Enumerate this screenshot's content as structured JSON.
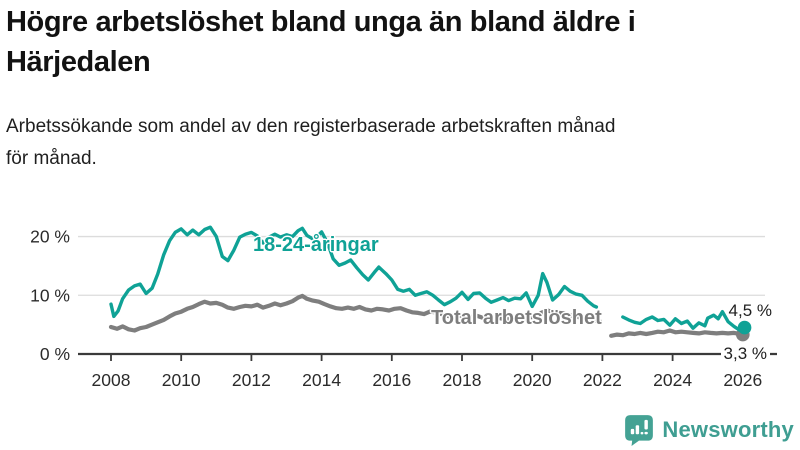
{
  "header": {
    "title_line1": "Högre arbetslöshet bland unga än bland äldre i",
    "title_line2": "Härjedalen",
    "subtitle_line1": "Arbetssökande som andel av den registerbaserade arbetskraften månad",
    "subtitle_line2": "för månad."
  },
  "branding": {
    "logo_text": "Newsworthy",
    "logo_color": "#3f9e92",
    "logo_icon": "bar-chart-speech-bubble-icon"
  },
  "chart_data": {
    "type": "line",
    "title": "Högre arbetslöshet bland unga än bland äldre i Härjedalen",
    "subtitle": "Arbetssökande som andel av den registerbaserade arbetskraften månad för månad.",
    "unit": "%",
    "grid": "horizontal",
    "legend_position": "inline-labels",
    "x_axis": {
      "ticks": [
        2008,
        2010,
        2012,
        2014,
        2016,
        2018,
        2020,
        2022,
        2024,
        2026
      ],
      "range": [
        2007,
        2027
      ]
    },
    "y_axis": {
      "ticks": [
        {
          "value": 0,
          "label": "0 %"
        },
        {
          "value": 10,
          "label": "10 %"
        },
        {
          "value": 20,
          "label": "20 %"
        }
      ],
      "range": [
        0,
        24
      ]
    },
    "series": [
      {
        "name": "18-24-åringar",
        "color": "#0fa296",
        "end_label": "4,5 %",
        "end_value": 4.5,
        "segments": [
          [
            [
              2008.0,
              8.5
            ],
            [
              2008.08,
              6.4
            ],
            [
              2008.2,
              7.3
            ],
            [
              2008.33,
              9.4
            ],
            [
              2008.5,
              10.9
            ],
            [
              2008.67,
              11.6
            ],
            [
              2008.83,
              11.9
            ],
            [
              2009.0,
              10.3
            ],
            [
              2009.17,
              11.2
            ],
            [
              2009.33,
              13.6
            ],
            [
              2009.5,
              16.9
            ],
            [
              2009.67,
              19.3
            ],
            [
              2009.83,
              20.7
            ],
            [
              2010.0,
              21.3
            ],
            [
              2010.17,
              20.3
            ],
            [
              2010.33,
              21.1
            ],
            [
              2010.5,
              20.3
            ],
            [
              2010.67,
              21.2
            ],
            [
              2010.83,
              21.6
            ],
            [
              2011.0,
              20.0
            ],
            [
              2011.17,
              16.6
            ],
            [
              2011.33,
              15.9
            ],
            [
              2011.5,
              17.7
            ],
            [
              2011.67,
              19.9
            ],
            [
              2011.83,
              20.4
            ],
            [
              2012.0,
              20.7
            ],
            [
              2012.17,
              20.1
            ],
            [
              2012.33,
              18.9
            ],
            [
              2012.5,
              19.9
            ],
            [
              2012.67,
              20.4
            ],
            [
              2012.83,
              19.9
            ],
            [
              2013.0,
              20.3
            ],
            [
              2013.17,
              20.0
            ],
            [
              2013.33,
              21.0
            ],
            [
              2013.45,
              21.4
            ],
            [
              2013.58,
              20.2
            ],
            [
              2013.75,
              19.6
            ],
            [
              2013.92,
              20.3
            ],
            [
              2014.0,
              20.8
            ],
            [
              2014.17,
              18.9
            ],
            [
              2014.33,
              16.2
            ],
            [
              2014.5,
              15.1
            ],
            [
              2014.67,
              15.5
            ],
            [
              2014.83,
              16.0
            ],
            [
              2015.0,
              14.7
            ],
            [
              2015.17,
              13.5
            ],
            [
              2015.33,
              12.6
            ],
            [
              2015.5,
              13.9
            ],
            [
              2015.63,
              14.8
            ],
            [
              2015.83,
              13.7
            ],
            [
              2016.0,
              12.6
            ],
            [
              2016.17,
              11.0
            ],
            [
              2016.33,
              10.7
            ],
            [
              2016.5,
              11.0
            ],
            [
              2016.67,
              10.0
            ],
            [
              2016.83,
              10.3
            ],
            [
              2017.0,
              10.6
            ],
            [
              2017.17,
              10.0
            ],
            [
              2017.33,
              9.2
            ],
            [
              2017.5,
              8.4
            ],
            [
              2017.67,
              8.9
            ],
            [
              2017.83,
              9.5
            ],
            [
              2018.0,
              10.5
            ],
            [
              2018.17,
              9.3
            ],
            [
              2018.33,
              10.3
            ],
            [
              2018.5,
              10.4
            ],
            [
              2018.67,
              9.5
            ],
            [
              2018.83,
              8.8
            ],
            [
              2019.0,
              9.2
            ],
            [
              2019.17,
              9.6
            ],
            [
              2019.33,
              9.1
            ],
            [
              2019.5,
              9.5
            ],
            [
              2019.67,
              9.4
            ],
            [
              2019.83,
              10.4
            ],
            [
              2020.0,
              8.1
            ],
            [
              2020.17,
              10.0
            ],
            [
              2020.3,
              13.7
            ],
            [
              2020.42,
              12.2
            ],
            [
              2020.58,
              9.2
            ],
            [
              2020.75,
              10.1
            ],
            [
              2020.92,
              11.5
            ],
            [
              2021.08,
              10.7
            ],
            [
              2021.25,
              10.2
            ],
            [
              2021.42,
              10.0
            ],
            [
              2021.58,
              9.0
            ],
            [
              2021.75,
              8.2
            ],
            [
              2021.83,
              8.0
            ]
          ],
          [
            [
              2022.58,
              6.3
            ],
            [
              2022.75,
              5.8
            ],
            [
              2022.92,
              5.4
            ],
            [
              2023.08,
              5.2
            ],
            [
              2023.25,
              5.9
            ],
            [
              2023.42,
              6.3
            ],
            [
              2023.58,
              5.7
            ],
            [
              2023.75,
              5.9
            ],
            [
              2023.92,
              4.9
            ],
            [
              2024.08,
              6.0
            ],
            [
              2024.25,
              5.2
            ],
            [
              2024.42,
              5.6
            ],
            [
              2024.58,
              4.4
            ],
            [
              2024.75,
              5.3
            ],
            [
              2024.92,
              4.8
            ],
            [
              2025.0,
              6.1
            ],
            [
              2025.17,
              6.6
            ],
            [
              2025.3,
              6.0
            ],
            [
              2025.42,
              7.2
            ],
            [
              2025.58,
              5.5
            ],
            [
              2025.75,
              4.7
            ],
            [
              2025.9,
              4.1
            ],
            [
              2026.05,
              4.5
            ]
          ]
        ]
      },
      {
        "name": "Total arbetslöshet",
        "color": "#7e7e7e",
        "end_label": "3,3 %",
        "end_value": 3.3,
        "segments": [
          [
            [
              2008.0,
              4.6
            ],
            [
              2008.17,
              4.3
            ],
            [
              2008.33,
              4.7
            ],
            [
              2008.5,
              4.2
            ],
            [
              2008.67,
              4.0
            ],
            [
              2008.83,
              4.4
            ],
            [
              2009.0,
              4.6
            ],
            [
              2009.17,
              5.0
            ],
            [
              2009.33,
              5.4
            ],
            [
              2009.5,
              5.8
            ],
            [
              2009.67,
              6.4
            ],
            [
              2009.83,
              6.9
            ],
            [
              2010.0,
              7.2
            ],
            [
              2010.17,
              7.7
            ],
            [
              2010.33,
              8.0
            ],
            [
              2010.5,
              8.5
            ],
            [
              2010.67,
              8.9
            ],
            [
              2010.83,
              8.6
            ],
            [
              2011.0,
              8.7
            ],
            [
              2011.17,
              8.4
            ],
            [
              2011.33,
              7.9
            ],
            [
              2011.5,
              7.7
            ],
            [
              2011.67,
              8.0
            ],
            [
              2011.83,
              8.2
            ],
            [
              2012.0,
              8.1
            ],
            [
              2012.17,
              8.4
            ],
            [
              2012.33,
              7.9
            ],
            [
              2012.5,
              8.2
            ],
            [
              2012.67,
              8.6
            ],
            [
              2012.83,
              8.3
            ],
            [
              2013.0,
              8.6
            ],
            [
              2013.17,
              9.0
            ],
            [
              2013.33,
              9.6
            ],
            [
              2013.45,
              9.9
            ],
            [
              2013.58,
              9.4
            ],
            [
              2013.75,
              9.1
            ],
            [
              2013.92,
              8.9
            ],
            [
              2014.08,
              8.5
            ],
            [
              2014.25,
              8.1
            ],
            [
              2014.42,
              7.8
            ],
            [
              2014.58,
              7.7
            ],
            [
              2014.75,
              7.9
            ],
            [
              2014.92,
              7.7
            ],
            [
              2015.08,
              8.0
            ],
            [
              2015.25,
              7.6
            ],
            [
              2015.42,
              7.4
            ],
            [
              2015.58,
              7.7
            ],
            [
              2015.75,
              7.6
            ],
            [
              2015.92,
              7.4
            ],
            [
              2016.08,
              7.7
            ],
            [
              2016.25,
              7.8
            ],
            [
              2016.42,
              7.4
            ],
            [
              2016.58,
              7.1
            ],
            [
              2016.75,
              7.0
            ],
            [
              2016.92,
              6.8
            ],
            [
              2017.08,
              7.2
            ],
            [
              2017.25,
              7.1
            ],
            [
              2017.42,
              6.8
            ],
            [
              2017.58,
              6.5
            ],
            [
              2017.75,
              6.3
            ],
            [
              2017.92,
              6.5
            ],
            [
              2018.08,
              6.6
            ],
            [
              2018.25,
              6.3
            ],
            [
              2018.42,
              6.5
            ],
            [
              2018.58,
              6.2
            ],
            [
              2018.75,
              6.0
            ],
            [
              2018.92,
              6.2
            ],
            [
              2019.08,
              6.1
            ],
            [
              2019.25,
              5.9
            ],
            [
              2019.42,
              6.0
            ],
            [
              2019.58,
              6.1
            ],
            [
              2019.75,
              6.0
            ],
            [
              2019.92,
              6.2
            ],
            [
              2020.08,
              6.4
            ],
            [
              2020.25,
              7.0
            ],
            [
              2020.42,
              7.4
            ],
            [
              2020.58,
              7.2
            ],
            [
              2020.75,
              7.0
            ],
            [
              2020.92,
              6.9
            ],
            [
              2021.08,
              6.6
            ],
            [
              2021.25,
              6.4
            ],
            [
              2021.42,
              6.1
            ],
            [
              2021.58,
              5.9
            ],
            [
              2021.75,
              5.7
            ],
            [
              2021.92,
              5.6
            ]
          ],
          [
            [
              2022.25,
              3.1
            ],
            [
              2022.42,
              3.3
            ],
            [
              2022.58,
              3.2
            ],
            [
              2022.75,
              3.5
            ],
            [
              2022.92,
              3.4
            ],
            [
              2023.08,
              3.6
            ],
            [
              2023.25,
              3.4
            ],
            [
              2023.42,
              3.6
            ],
            [
              2023.58,
              3.8
            ],
            [
              2023.75,
              3.7
            ],
            [
              2023.92,
              4.0
            ],
            [
              2024.08,
              3.7
            ],
            [
              2024.25,
              3.8
            ],
            [
              2024.42,
              3.7
            ],
            [
              2024.58,
              3.6
            ],
            [
              2024.75,
              3.5
            ],
            [
              2024.92,
              3.7
            ],
            [
              2025.08,
              3.6
            ],
            [
              2025.25,
              3.5
            ],
            [
              2025.42,
              3.6
            ],
            [
              2025.58,
              3.5
            ],
            [
              2025.75,
              3.6
            ],
            [
              2025.92,
              3.4
            ],
            [
              2026.0,
              3.3
            ]
          ]
        ]
      }
    ]
  }
}
